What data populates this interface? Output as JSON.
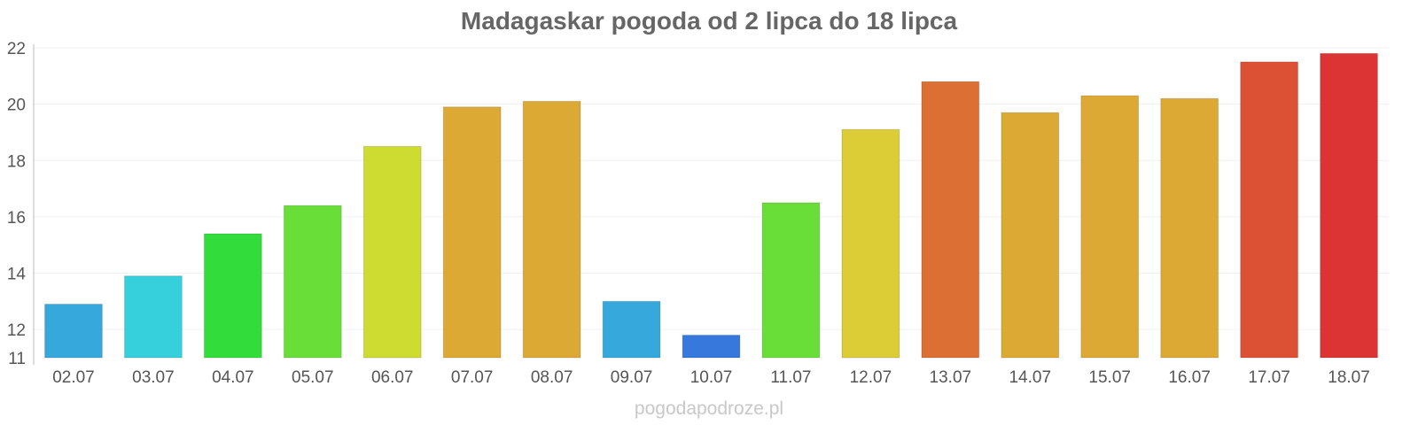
{
  "chart_data": {
    "type": "bar",
    "title": "Madagaskar pogoda od 2 lipca do 18 lipca",
    "categories": [
      "02.07",
      "03.07",
      "04.07",
      "05.07",
      "06.07",
      "07.07",
      "08.07",
      "09.07",
      "10.07",
      "11.07",
      "12.07",
      "13.07",
      "14.07",
      "15.07",
      "16.07",
      "17.07",
      "18.07"
    ],
    "values": [
      12.9,
      13.9,
      15.4,
      16.4,
      18.5,
      19.9,
      20.1,
      13.0,
      11.8,
      16.5,
      19.1,
      20.8,
      19.7,
      20.3,
      20.2,
      21.5,
      21.8
    ],
    "colors": [
      "#36a8dc",
      "#36d0dc",
      "#32dc3a",
      "#6ade38",
      "#cedc32",
      "#dcaa34",
      "#dcaa34",
      "#36a8dc",
      "#3678dc",
      "#6ade38",
      "#dccc36",
      "#dc7034",
      "#dcaa34",
      "#dcaa34",
      "#dcaa34",
      "#dc5034",
      "#dc3434"
    ],
    "xlabel": "",
    "ylabel": "",
    "ylim": [
      11,
      22
    ],
    "yticks": [
      11,
      12,
      14,
      16,
      18,
      20,
      22
    ],
    "grid": true,
    "legend": "none"
  },
  "watermark": "pogodapodroze.pl"
}
